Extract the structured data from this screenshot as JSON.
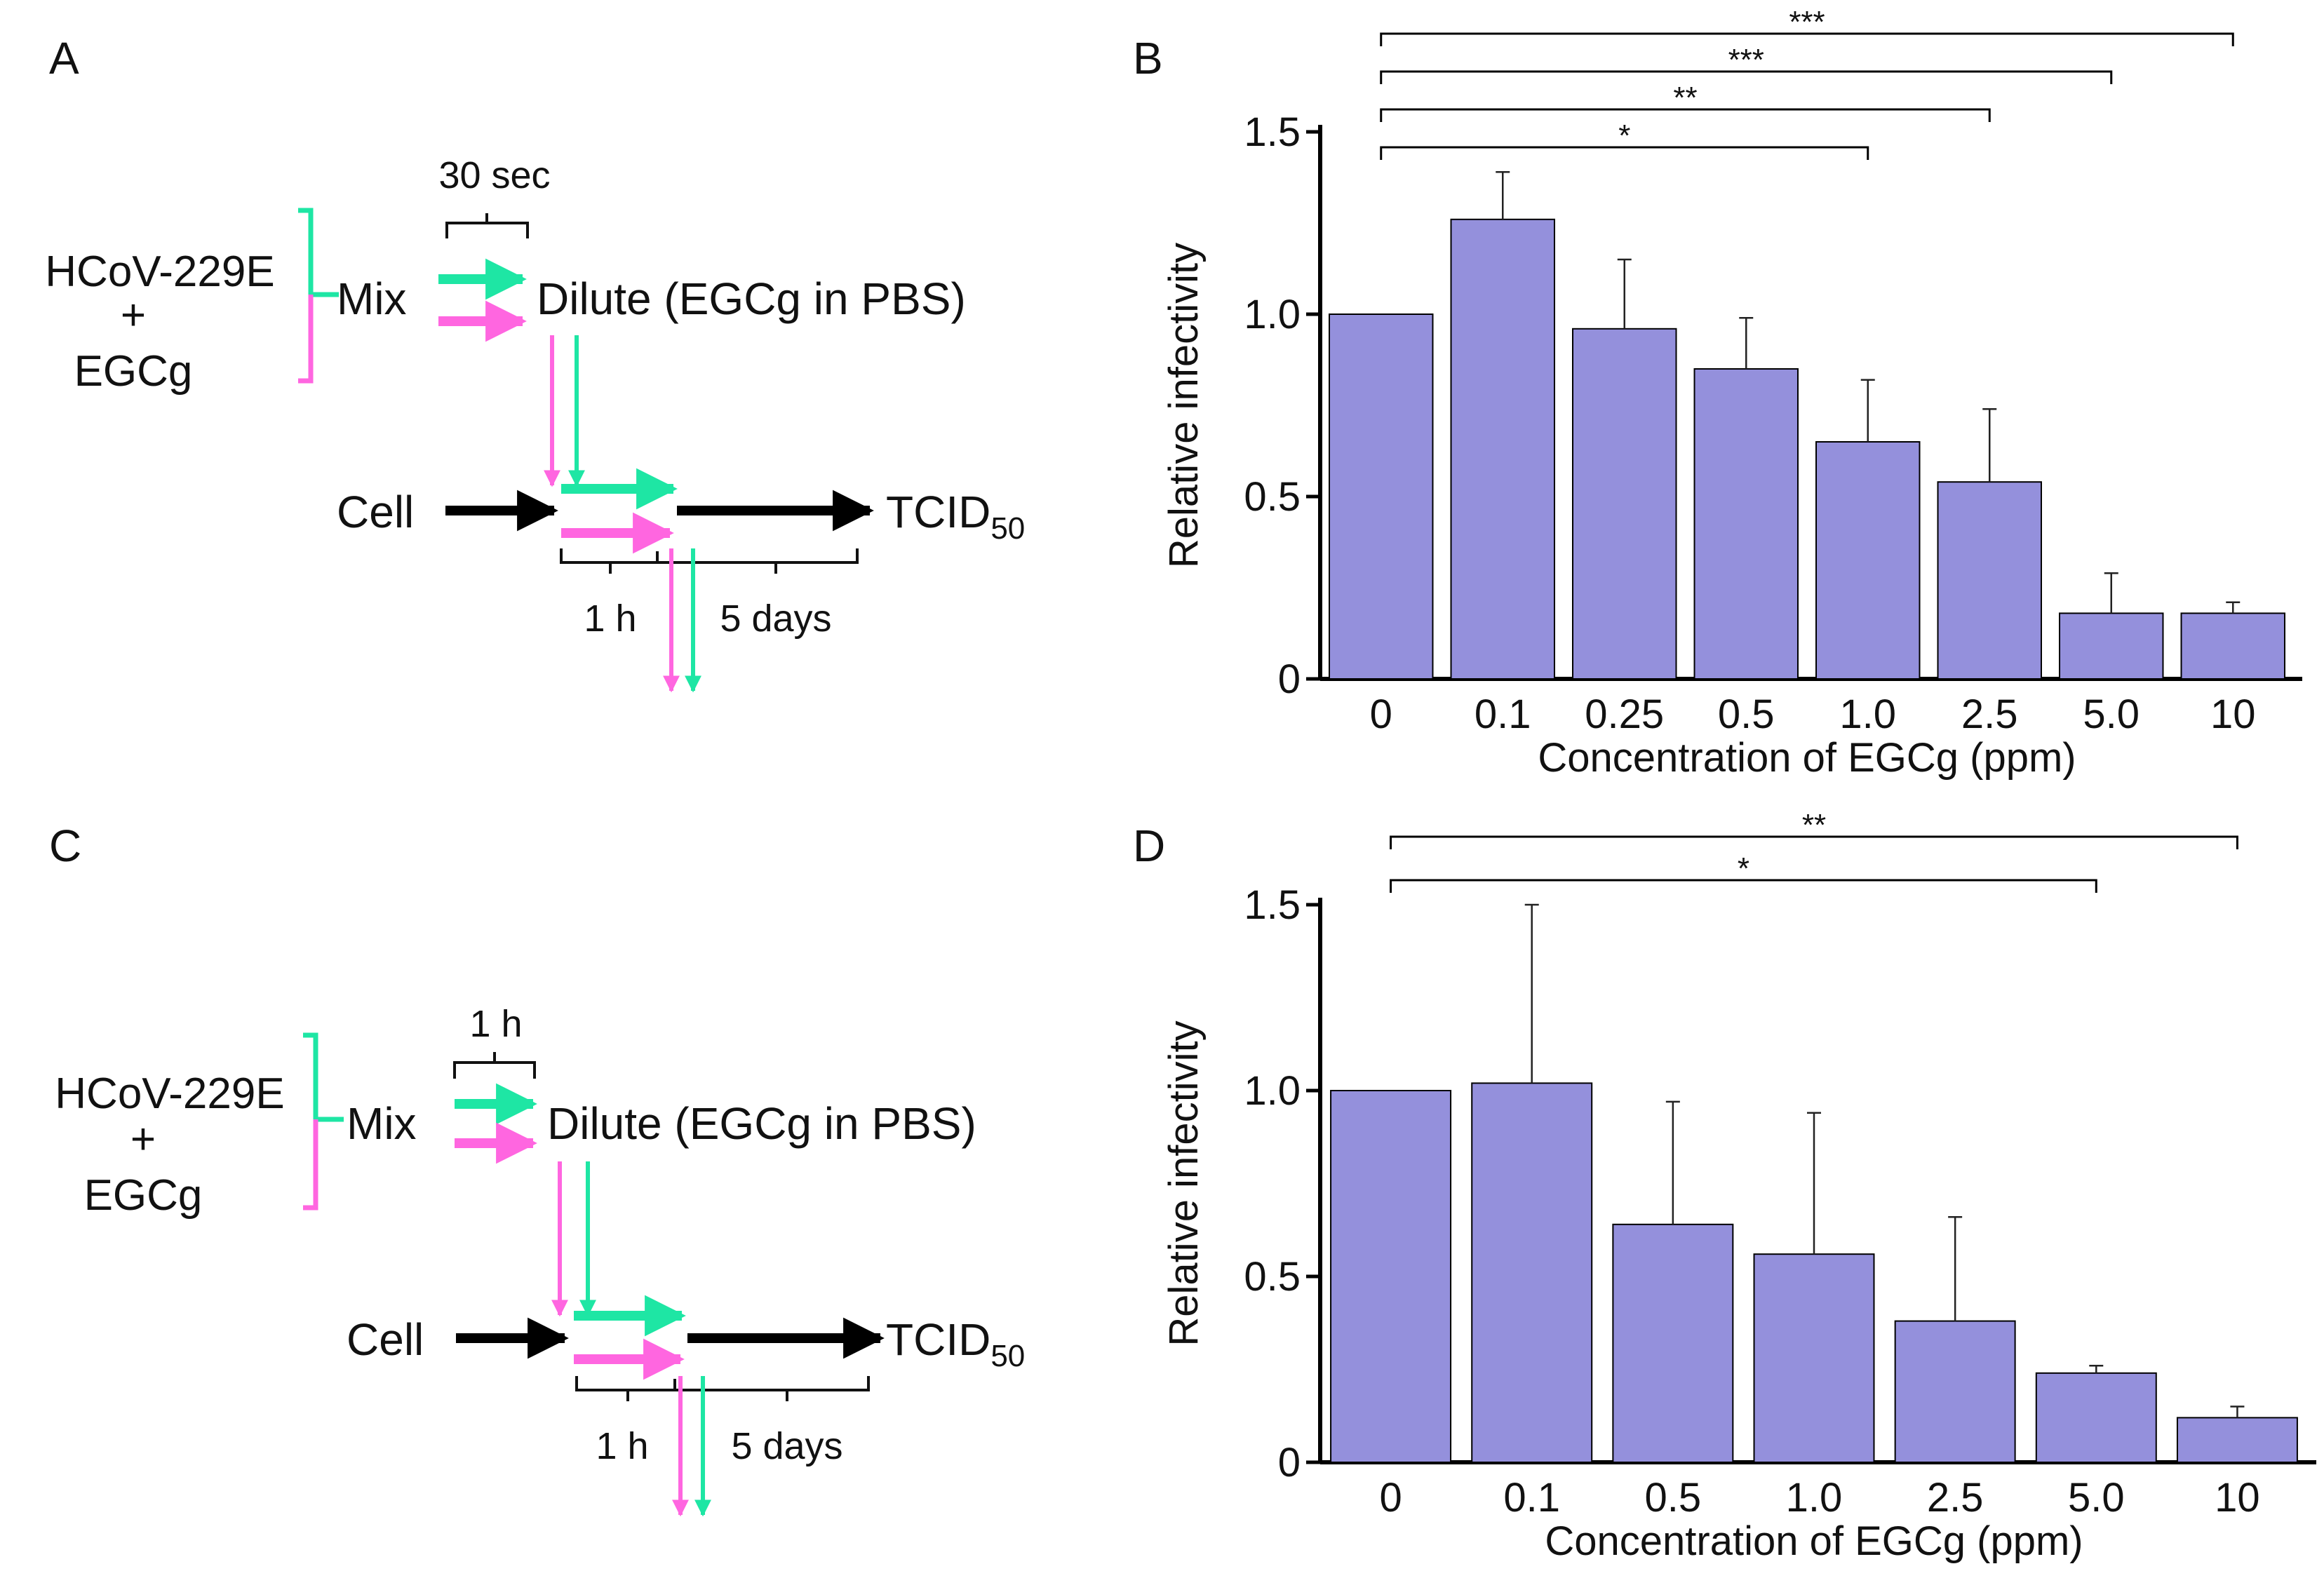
{
  "colors": {
    "green": "#1ee6a4",
    "magenta": "#ff66e0",
    "bar": "#9490dc",
    "black": "#000000"
  },
  "panels": {
    "a": {
      "letter": "A",
      "virus": "HCoV-229E",
      "plus": "+",
      "compound": "EGCg",
      "mix": "Mix",
      "dilute": "Dilute (EGCg in PBS)",
      "time": "30 sec",
      "cell": "Cell",
      "tcid": "TCID",
      "tcid_sub": "50",
      "incubation": "1 h",
      "culture": "5 days"
    },
    "c": {
      "letter": "C",
      "virus": "HCoV-229E",
      "plus": "+",
      "compound": "EGCg",
      "mix": "Mix",
      "dilute": "Dilute (EGCg in PBS)",
      "time": "1 h",
      "cell": "Cell",
      "tcid": "TCID",
      "tcid_sub": "50",
      "incubation": "1 h",
      "culture": "5 days"
    }
  },
  "chart_data": [
    {
      "panel": "B",
      "type": "bar",
      "xlabel": "Concentration of EGCg (ppm)",
      "ylabel": "Relative infectivity",
      "ylim": [
        0,
        1.5
      ],
      "yticks": [
        0,
        0.5,
        1.0,
        1.5
      ],
      "ytick_labels": [
        "0",
        "0.5",
        "1.0",
        "1.5"
      ],
      "categories": [
        "0",
        "0.1",
        "0.25",
        "0.5",
        "1.0",
        "2.5",
        "5.0",
        "10"
      ],
      "values": [
        1.0,
        1.26,
        0.96,
        0.85,
        0.65,
        0.54,
        0.18,
        0.18
      ],
      "error_upper": [
        1.0,
        1.39,
        1.15,
        0.99,
        0.82,
        0.74,
        0.29,
        0.21
      ],
      "significance": [
        {
          "from": 0,
          "to": 4,
          "label": "*"
        },
        {
          "from": 0,
          "to": 5,
          "label": "**"
        },
        {
          "from": 0,
          "to": 6,
          "label": "***"
        },
        {
          "from": 0,
          "to": 7,
          "label": "***"
        }
      ]
    },
    {
      "panel": "D",
      "type": "bar",
      "xlabel": "Concentration of EGCg (ppm)",
      "ylabel": "Relative infectivity",
      "ylim": [
        0,
        1.5
      ],
      "yticks": [
        0,
        0.5,
        1.0,
        1.5
      ],
      "ytick_labels": [
        "0",
        "0.5",
        "1.0",
        "1.5"
      ],
      "categories": [
        "0",
        "0.1",
        "0.5",
        "1.0",
        "2.5",
        "5.0",
        "10"
      ],
      "values": [
        1.0,
        1.02,
        0.64,
        0.56,
        0.38,
        0.24,
        0.12
      ],
      "error_upper": [
        1.0,
        1.5,
        0.97,
        0.94,
        0.66,
        0.26,
        0.15
      ],
      "significance": [
        {
          "from": 0,
          "to": 5,
          "label": "*"
        },
        {
          "from": 0,
          "to": 6,
          "label": "**"
        }
      ]
    }
  ]
}
